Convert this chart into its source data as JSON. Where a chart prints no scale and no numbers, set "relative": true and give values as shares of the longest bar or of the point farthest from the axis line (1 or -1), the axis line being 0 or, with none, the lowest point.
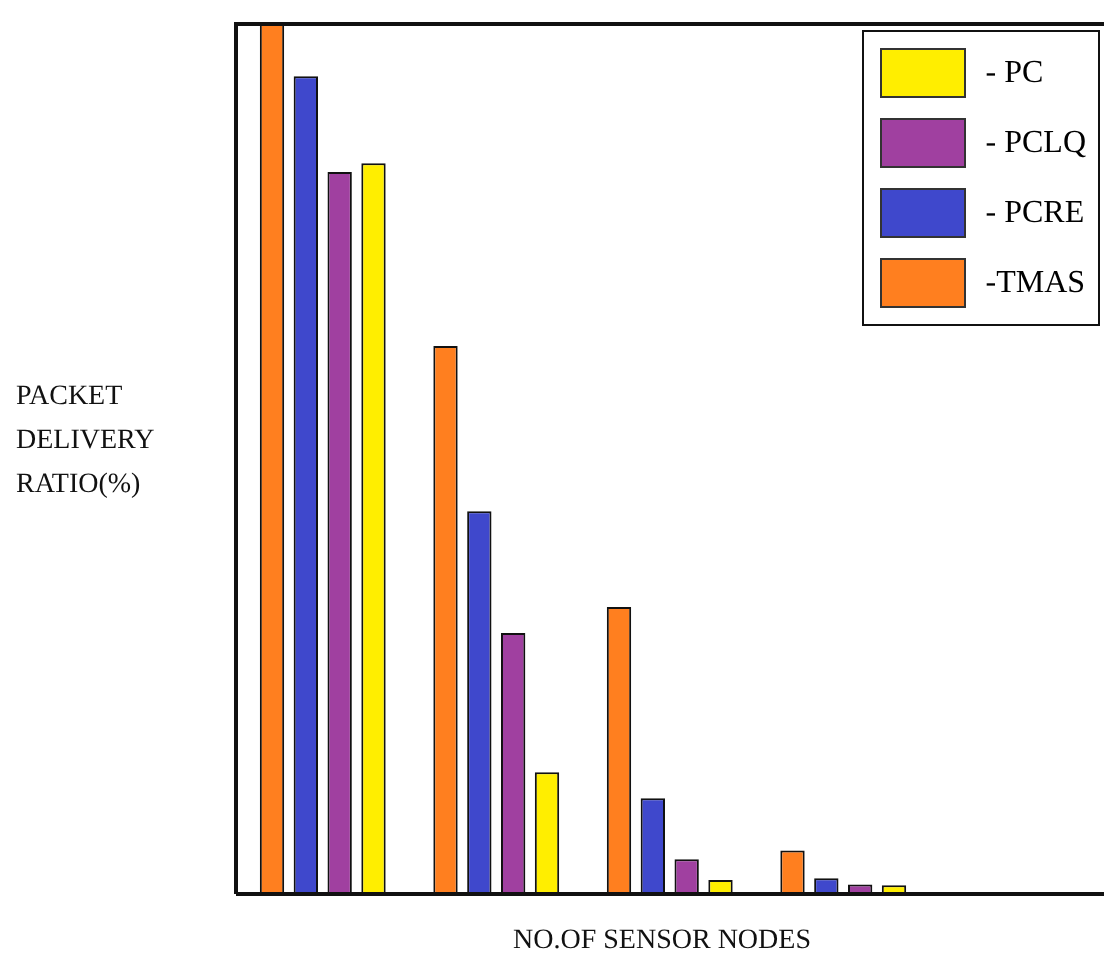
{
  "chart_data": {
    "type": "bar",
    "relative": true,
    "ylabel": "PACKET DELIVERY RATIO(%)",
    "xlabel": "NO.OF SENSOR NODES",
    "categories": [
      null,
      null,
      null,
      null
    ],
    "legend": "top right",
    "series": [
      {
        "name": "-TMAS",
        "color": "#ff7f1f",
        "values": [
          1,
          0.63,
          0.33,
          0.05
        ]
      },
      {
        "name": "- PCRE",
        "color": "#3f48cc",
        "values": [
          0.94,
          0.44,
          0.11,
          0.018
        ]
      },
      {
        "name": "- PCLQ",
        "color": "#a040a0",
        "values": [
          0.83,
          0.3,
          0.04,
          0.011
        ]
      },
      {
        "name": "- PC",
        "color": "#ffee00",
        "values": [
          0.84,
          0.14,
          0.016,
          0.01
        ]
      }
    ]
  }
}
